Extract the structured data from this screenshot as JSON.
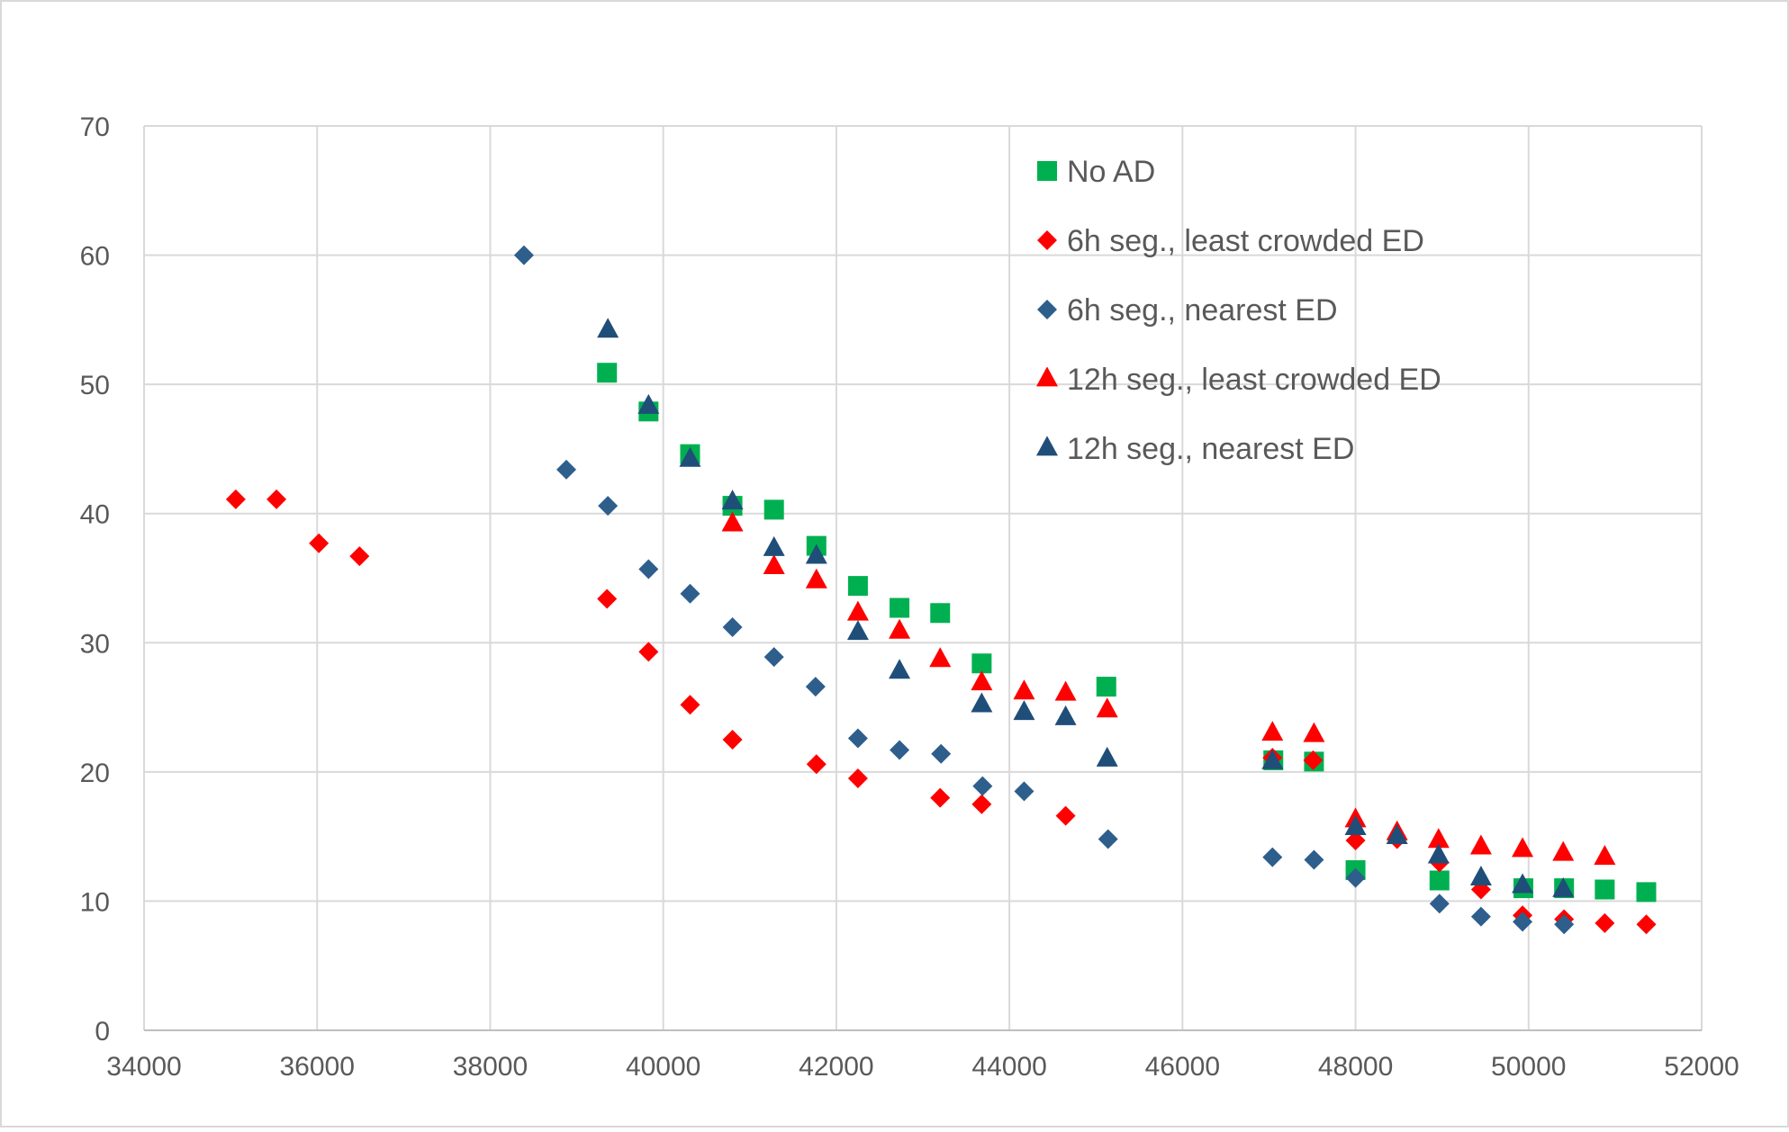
{
  "chart_data": {
    "type": "scatter",
    "title": "",
    "xlabel": "",
    "ylabel": "",
    "xlim": [
      34000,
      52000
    ],
    "ylim": [
      0,
      70
    ],
    "xticks": [
      34000,
      36000,
      38000,
      40000,
      42000,
      44000,
      46000,
      48000,
      50000,
      52000
    ],
    "yticks": [
      0,
      10,
      20,
      30,
      40,
      50,
      60,
      70
    ],
    "xtick_labels": [
      "34000",
      "36000",
      "38000",
      "40000",
      "42000",
      "44000",
      "46000",
      "48000",
      "50000",
      "52000"
    ],
    "ytick_labels": [
      "0",
      "10",
      "20",
      "30",
      "40",
      "50",
      "60",
      "70"
    ],
    "grid": true,
    "legend_position": "top-right",
    "series": [
      {
        "name": "No AD",
        "marker": "square",
        "color": "#00b050",
        "x": [
          39350,
          39830,
          40310,
          40800,
          41280,
          41770,
          42250,
          42730,
          43200,
          43680,
          45120,
          47050,
          47520,
          48000,
          48970,
          49940,
          50410,
          50880,
          51360
        ],
        "y": [
          50.9,
          47.9,
          44.6,
          40.6,
          40.3,
          37.5,
          34.4,
          32.7,
          32.3,
          28.4,
          26.6,
          20.9,
          20.8,
          12.4,
          11.6,
          11.0,
          11.0,
          10.9,
          10.7
        ]
      },
      {
        "name": "6h seg., least crowded ED",
        "marker": "diamond",
        "color": "#ff0000",
        "x": [
          35060,
          35530,
          36020,
          36490,
          39350,
          39830,
          40310,
          40800,
          41770,
          42250,
          43200,
          43680,
          44650,
          47040,
          47510,
          48000,
          48480,
          48970,
          49450,
          49930,
          50410,
          50880,
          51360
        ],
        "y": [
          41.1,
          41.1,
          37.7,
          36.7,
          33.4,
          29.3,
          25.2,
          22.5,
          20.6,
          19.5,
          18.0,
          17.5,
          16.6,
          21.1,
          20.9,
          14.7,
          14.8,
          13.0,
          10.9,
          8.9,
          8.6,
          8.3,
          8.2
        ]
      },
      {
        "name": "6h seg., nearest ED",
        "marker": "diamond",
        "color": "#2e5e8c",
        "x": [
          38390,
          38880,
          39360,
          39830,
          40310,
          40800,
          41280,
          41760,
          42250,
          42730,
          43210,
          43690,
          44170,
          45140,
          47040,
          47520,
          48000,
          48970,
          49450,
          49930,
          50410
        ],
        "y": [
          60.0,
          43.4,
          40.6,
          35.7,
          33.8,
          31.2,
          28.9,
          26.6,
          22.6,
          21.7,
          21.4,
          18.9,
          18.5,
          14.8,
          13.4,
          13.2,
          11.8,
          9.8,
          8.8,
          8.4,
          8.2
        ]
      },
      {
        "name": "12h seg., least crowded ED",
        "marker": "triangle",
        "color": "#ff0000",
        "x": [
          40800,
          41280,
          41770,
          42250,
          42730,
          43200,
          43680,
          44170,
          44650,
          45130,
          47040,
          47520,
          48000,
          48480,
          48960,
          49450,
          49930,
          50400,
          50880
        ],
        "y": [
          39.2,
          35.9,
          34.8,
          32.3,
          30.9,
          28.7,
          26.9,
          26.2,
          26.1,
          24.8,
          23.0,
          22.9,
          16.3,
          15.3,
          14.7,
          14.2,
          14.0,
          13.7,
          13.4
        ]
      },
      {
        "name": "12h seg., nearest ED",
        "marker": "triangle",
        "color": "#1f4e79",
        "x": [
          39360,
          39830,
          40310,
          40800,
          41280,
          41770,
          42250,
          42730,
          43680,
          44170,
          44650,
          45130,
          47040,
          48000,
          48480,
          48960,
          49450,
          49930,
          50400
        ],
        "y": [
          54.2,
          48.3,
          44.2,
          40.9,
          37.3,
          36.7,
          30.8,
          27.8,
          25.2,
          24.6,
          24.2,
          21.0,
          20.8,
          15.7,
          15.0,
          13.5,
          11.8,
          11.2,
          10.9
        ]
      }
    ]
  }
}
